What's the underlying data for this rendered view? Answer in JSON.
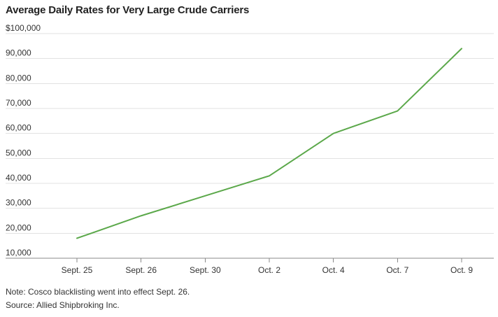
{
  "chart_data": {
    "type": "line",
    "title": "Average Daily Rates for Very Large Crude Carriers",
    "categories": [
      "Sept. 25",
      "Sept. 26",
      "Sept. 30",
      "Oct. 2",
      "Oct. 4",
      "Oct. 7",
      "Oct. 9"
    ],
    "series": [
      {
        "values": [
          18000,
          27000,
          35000,
          43000,
          60000,
          69000,
          94000
        ],
        "color": "#5ba84a"
      }
    ],
    "ylim": [
      10000,
      100000
    ],
    "yticks": [
      10000,
      20000,
      30000,
      40000,
      50000,
      60000,
      70000,
      80000,
      90000,
      100000
    ],
    "ytick_labels": [
      "10,000",
      "20,000",
      "30,000",
      "40,000",
      "50,000",
      "60,000",
      "70,000",
      "80,000",
      "90,000",
      "$100,000"
    ],
    "grid": true,
    "xlabel": "",
    "ylabel": ""
  },
  "notes": {
    "note": "Note: Cosco blacklisting went into effect Sept. 26.",
    "source": "Source: Allied Shipbroking Inc."
  }
}
